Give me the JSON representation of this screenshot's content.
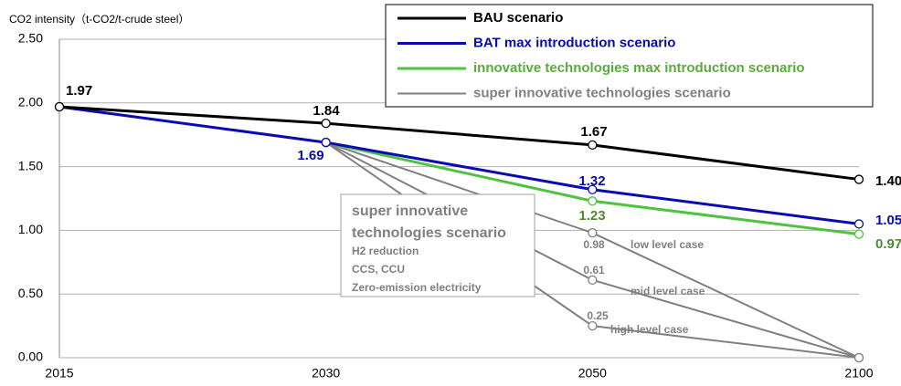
{
  "chart_data": {
    "type": "line",
    "y_label": "CO2 intensity（t-CO2/t-crude steel）",
    "categories": [
      "2015",
      "2030",
      "2050",
      "2100"
    ],
    "ylim": [
      0,
      2.5
    ],
    "yticks": [
      {
        "value": 0,
        "label": "0.00"
      },
      {
        "value": 0.5,
        "label": "0.50"
      },
      {
        "value": 1,
        "label": "1.00"
      },
      {
        "value": 1.5,
        "label": "1.50"
      },
      {
        "value": 2,
        "label": "2.00"
      },
      {
        "value": 2.5,
        "label": "2.50"
      }
    ],
    "grid": true,
    "legend": "top-right",
    "series": [
      {
        "name": "BAU scenario",
        "color": "#000000",
        "values": [
          1.97,
          1.84,
          1.67,
          1.4
        ],
        "value_labels": [
          "1.97",
          "1.84",
          "1.67",
          "1.40"
        ]
      },
      {
        "name": "BAT max introduction scenario",
        "color": "#0a0ab4",
        "values": [
          1.97,
          1.69,
          1.32,
          1.05
        ]
      },
      {
        "name": "innovative technologies max introduction scenario",
        "color": "#4fc341",
        "values": [
          null,
          1.69,
          1.23,
          0.97
        ]
      },
      {
        "name": "super innovative technologies scenario",
        "color": "#808080",
        "cases": [
          {
            "label": "low level case",
            "values": [
              null,
              1.69,
              0.98,
              0
            ]
          },
          {
            "label": "mid level case",
            "values": [
              null,
              1.69,
              0.61,
              0
            ]
          },
          {
            "label": "high level case",
            "values": [
              null,
              1.69,
              0.25,
              0
            ]
          }
        ]
      }
    ],
    "annotation": {
      "title": [
        "super innovative",
        "technologies scenario"
      ],
      "items": [
        "H2 reduction",
        "CCS, CCU",
        "Zero-emission electricity"
      ]
    }
  }
}
